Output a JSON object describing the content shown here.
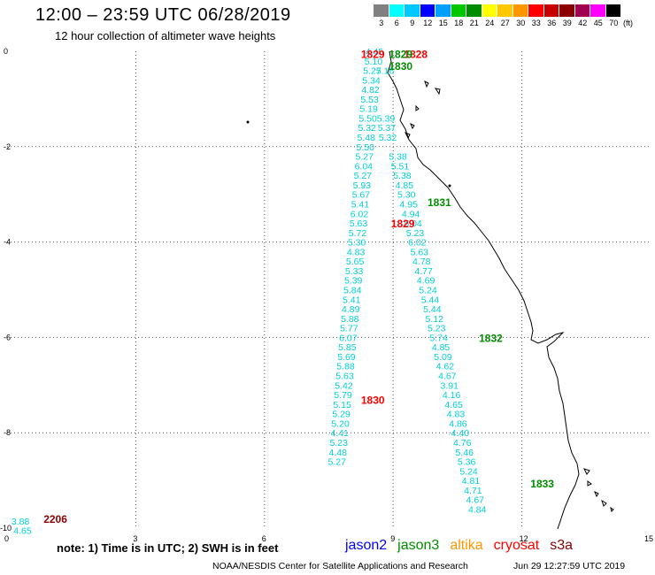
{
  "header": {
    "title": "12:00  –  23:59 UTC 06/28/2019",
    "subtitle": "12 hour collection of altimeter wave heights"
  },
  "legend": {
    "labels": [
      "3",
      "6",
      "9",
      "12",
      "15",
      "18",
      "21",
      "24",
      "27",
      "30",
      "33",
      "36",
      "39",
      "42",
      "45",
      "70"
    ],
    "unit": "(ft)",
    "colors": [
      "#808080",
      "#00ffff",
      "#00c8ff",
      "#0000ff",
      "#00a0ff",
      "#00c800",
      "#008c00",
      "#ffff00",
      "#ffc800",
      "#ff9600",
      "#ff0000",
      "#c80000",
      "#8c0000",
      "#a00050",
      "#ff00ff",
      "#000000"
    ]
  },
  "axes": {
    "x_ticks": [
      "0",
      "3",
      "6",
      "9",
      "12",
      "15"
    ],
    "y_ticks": [
      "0",
      "-2",
      "-4",
      "-6",
      "-8",
      "-10"
    ]
  },
  "tracks": [
    {
      "name": "track-a",
      "color": "#00d0d8",
      "pass": {
        "label": "1829",
        "color": "#ff0000",
        "x": 8.25,
        "y": -0.05
      },
      "points": [
        {
          "v": "4.45",
          "x": 8.35,
          "y": 0.0
        },
        {
          "v": "5.10",
          "x": 8.33,
          "y": -0.2
        },
        {
          "v": "5.27",
          "x": 8.3,
          "y": -0.4
        },
        {
          "v": "5.34",
          "x": 8.28,
          "y": -0.6
        },
        {
          "v": "4.82",
          "x": 8.26,
          "y": -0.8
        },
        {
          "v": "5.53",
          "x": 8.24,
          "y": -1.0
        },
        {
          "v": "5.19",
          "x": 8.22,
          "y": -1.2
        },
        {
          "v": "5.50",
          "x": 8.2,
          "y": -1.4
        },
        {
          "v": "5.32",
          "x": 8.18,
          "y": -1.6
        },
        {
          "v": "5.48",
          "x": 8.16,
          "y": -1.8
        },
        {
          "v": "5.50",
          "x": 8.14,
          "y": -2.0
        },
        {
          "v": "5.27",
          "x": 8.12,
          "y": -2.2
        },
        {
          "v": "6.04",
          "x": 8.1,
          "y": -2.4
        },
        {
          "v": "5.27",
          "x": 8.08,
          "y": -2.6
        },
        {
          "v": "5.93",
          "x": 8.06,
          "y": -2.8
        },
        {
          "v": "5.67",
          "x": 8.04,
          "y": -3.0
        },
        {
          "v": "5.41",
          "x": 8.02,
          "y": -3.2
        },
        {
          "v": "6.02",
          "x": 8.0,
          "y": -3.4
        },
        {
          "v": "5.63",
          "x": 7.98,
          "y": -3.6
        },
        {
          "v": "5.72",
          "x": 7.96,
          "y": -3.8
        },
        {
          "v": "5.30",
          "x": 7.94,
          "y": -4.0
        },
        {
          "v": "4.83",
          "x": 7.92,
          "y": -4.2
        },
        {
          "v": "5.65",
          "x": 7.9,
          "y": -4.4
        },
        {
          "v": "5.33",
          "x": 7.88,
          "y": -4.6
        },
        {
          "v": "5.39",
          "x": 7.86,
          "y": -4.8
        },
        {
          "v": "5.84",
          "x": 7.84,
          "y": -5.0
        },
        {
          "v": "5.41",
          "x": 7.82,
          "y": -5.2
        },
        {
          "v": "4.89",
          "x": 7.8,
          "y": -5.4
        },
        {
          "v": "5.88",
          "x": 7.78,
          "y": -5.6
        },
        {
          "v": "5.77",
          "x": 7.76,
          "y": -5.8
        },
        {
          "v": "6.07",
          "x": 7.74,
          "y": -6.0
        },
        {
          "v": "5.85",
          "x": 7.72,
          "y": -6.2
        },
        {
          "v": "5.69",
          "x": 7.7,
          "y": -6.4
        },
        {
          "v": "5.88",
          "x": 7.68,
          "y": -6.6
        },
        {
          "v": "5.63",
          "x": 7.66,
          "y": -6.8
        },
        {
          "v": "5.42",
          "x": 7.64,
          "y": -7.0
        },
        {
          "v": "5.79",
          "x": 7.62,
          "y": -7.2
        },
        {
          "v": "5.15",
          "x": 7.6,
          "y": -7.4
        },
        {
          "v": "5.29",
          "x": 7.58,
          "y": -7.6
        },
        {
          "v": "5.20",
          "x": 7.56,
          "y": -7.8
        },
        {
          "v": "4.41",
          "x": 7.54,
          "y": -8.0
        },
        {
          "v": "5.23",
          "x": 7.52,
          "y": -8.2
        },
        {
          "v": "4.48",
          "x": 7.5,
          "y": -8.4
        },
        {
          "v": "5.27",
          "x": 7.48,
          "y": -8.6
        }
      ]
    },
    {
      "name": "track-b",
      "color": "#00d0d8",
      "pass": {
        "label": "1828",
        "color": "#ff0000",
        "x": 9.25,
        "y": -0.05
      },
      "points": [
        {
          "v": "5.16",
          "x": 8.6,
          "y": -0.4
        },
        {
          "v": "5.39",
          "x": 8.62,
          "y": -1.4
        },
        {
          "v": "5.37",
          "x": 8.64,
          "y": -1.6
        },
        {
          "v": "5.32",
          "x": 8.66,
          "y": -1.8
        },
        {
          "v": "5.38",
          "x": 8.9,
          "y": -2.2
        },
        {
          "v": "5.51",
          "x": 8.95,
          "y": -2.4
        },
        {
          "v": "5.38",
          "x": 9.0,
          "y": -2.6
        },
        {
          "v": "4.85",
          "x": 9.05,
          "y": -2.8
        },
        {
          "v": "5.30",
          "x": 9.1,
          "y": -3.0
        },
        {
          "v": "4.95",
          "x": 9.15,
          "y": -3.2
        },
        {
          "v": "4.94",
          "x": 9.2,
          "y": -3.4
        },
        {
          "v": "5.04",
          "x": 9.25,
          "y": -3.6
        },
        {
          "v": "5.23",
          "x": 9.3,
          "y": -3.8
        },
        {
          "v": "6.02",
          "x": 9.35,
          "y": -4.0
        },
        {
          "v": "5.63",
          "x": 9.4,
          "y": -4.2
        },
        {
          "v": "4.78",
          "x": 9.45,
          "y": -4.4
        },
        {
          "v": "4.77",
          "x": 9.5,
          "y": -4.6
        },
        {
          "v": "4.69",
          "x": 9.55,
          "y": -4.8
        },
        {
          "v": "5.24",
          "x": 9.6,
          "y": -5.0
        },
        {
          "v": "5.44",
          "x": 9.65,
          "y": -5.2
        },
        {
          "v": "5.44",
          "x": 9.7,
          "y": -5.4
        },
        {
          "v": "5.12",
          "x": 9.75,
          "y": -5.6
        },
        {
          "v": "5.23",
          "x": 9.8,
          "y": -5.8
        },
        {
          "v": "5.74",
          "x": 9.85,
          "y": -6.0
        },
        {
          "v": "4.85",
          "x": 9.9,
          "y": -6.2
        },
        {
          "v": "5.09",
          "x": 9.95,
          "y": -6.4
        },
        {
          "v": "4.62",
          "x": 10.0,
          "y": -6.6
        },
        {
          "v": "4.67",
          "x": 10.05,
          "y": -6.8
        },
        {
          "v": "3.91",
          "x": 10.1,
          "y": -7.0
        },
        {
          "v": "4.16",
          "x": 10.15,
          "y": -7.2
        },
        {
          "v": "4.65",
          "x": 10.2,
          "y": -7.4
        },
        {
          "v": "4.83",
          "x": 10.25,
          "y": -7.6
        },
        {
          "v": "4.86",
          "x": 10.3,
          "y": -7.8
        },
        {
          "v": "4.40",
          "x": 10.35,
          "y": -8.0
        },
        {
          "v": "4.76",
          "x": 10.4,
          "y": -8.2
        },
        {
          "v": "5.46",
          "x": 10.45,
          "y": -8.4
        },
        {
          "v": "5.36",
          "x": 10.5,
          "y": -8.6
        },
        {
          "v": "5.24",
          "x": 10.55,
          "y": -8.8
        },
        {
          "v": "4.81",
          "x": 10.6,
          "y": -9.0
        },
        {
          "v": "4.71",
          "x": 10.65,
          "y": -9.2
        },
        {
          "v": "4.67",
          "x": 10.7,
          "y": -9.4
        },
        {
          "v": "4.84",
          "x": 10.75,
          "y": -9.6
        }
      ]
    },
    {
      "name": "track-c",
      "color": "#00d0d8",
      "pass": {
        "label": "2206",
        "color": "#8b0000",
        "x": 0.85,
        "y": -9.8
      },
      "points": [
        {
          "v": "3.88",
          "x": 0.1,
          "y": -9.85
        },
        {
          "v": "4.65",
          "x": 0.15,
          "y": -10.05
        }
      ]
    }
  ],
  "pass_labels": [
    {
      "label": "1829",
      "color": "#008c00",
      "x": 8.9,
      "y": -0.05
    },
    {
      "label": "1830",
      "color": "#008c00",
      "x": 8.9,
      "y": -0.3
    },
    {
      "label": "1831",
      "color": "#008c00",
      "x": 9.8,
      "y": -3.15
    },
    {
      "label": "1829",
      "color": "#ff0000",
      "x": 8.95,
      "y": -3.6
    },
    {
      "label": "1832",
      "color": "#008c00",
      "x": 11.0,
      "y": -6.0
    },
    {
      "label": "1830",
      "color": "#ff0000",
      "x": 8.25,
      "y": -7.3
    },
    {
      "label": "1833",
      "color": "#008c00",
      "x": 12.2,
      "y": -9.05
    }
  ],
  "footer": {
    "note": "note:  1) Time is in UTC; 2) SWH is in feet",
    "satellites": [
      {
        "name": "jason2",
        "color": "#0000ff"
      },
      {
        "name": "jason3",
        "color": "#008c00"
      },
      {
        "name": "altika",
        "color": "#ff9600"
      },
      {
        "name": "cryosat",
        "color": "#ff0000"
      },
      {
        "name": "s3a",
        "color": "#8b0000"
      }
    ],
    "credit": "NOAA/NESDIS Center for Satellite Applications and Research",
    "timestamp": "Jun 29 12:27:59 UTC 2019"
  }
}
